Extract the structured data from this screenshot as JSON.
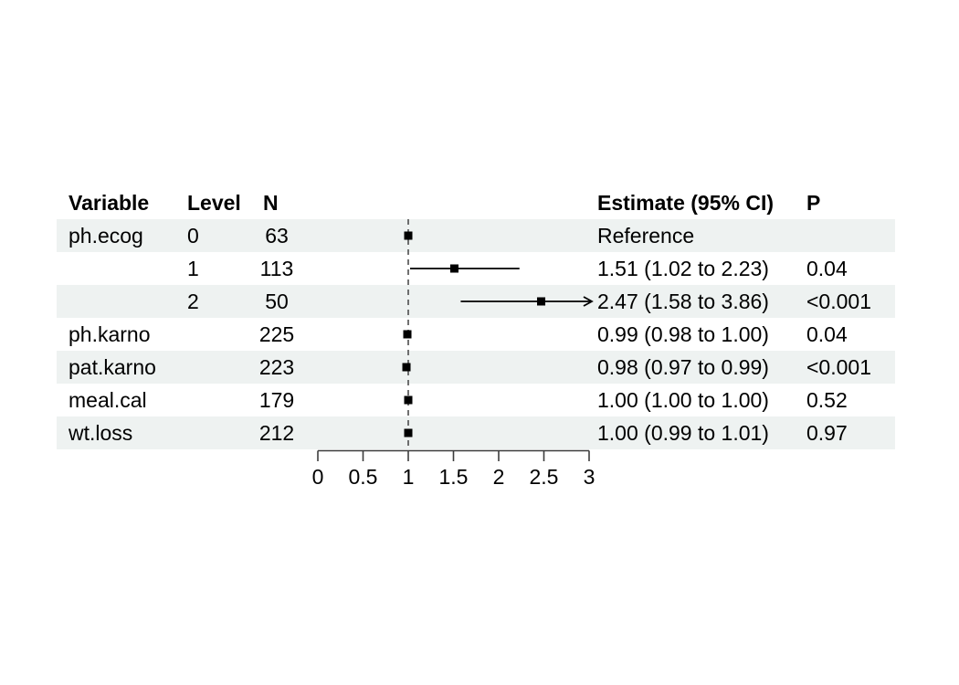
{
  "figure": {
    "background": "#ffffff",
    "row_shade_color": "#eef2f1",
    "text_color": "#000000",
    "data_color": "#000000",
    "axis_color": "#3d3d3d",
    "reference_line_color": "#4d4d4d"
  },
  "chart_data": {
    "type": "forest",
    "title": "",
    "xlabel": "",
    "ylabel": "",
    "legend": null,
    "grid": false,
    "xlim": [
      0,
      3
    ],
    "x_tick_values": [
      0,
      0.5,
      1,
      1.5,
      2,
      2.5,
      3
    ],
    "x_tick_labels": [
      "0",
      "0.5",
      "1",
      "1.5",
      "2",
      "2.5",
      "3"
    ],
    "reference_line": 1,
    "columns": {
      "variable": "Variable",
      "level": "Level",
      "n": "N",
      "estimate": "Estimate (95% CI)",
      "p": "P"
    },
    "rows": [
      {
        "variable": "ph.ecog",
        "level": "0",
        "n": "63",
        "estimate": 1.0,
        "ci_low": null,
        "ci_high": null,
        "estimate_label": "Reference",
        "p": "",
        "shaded": true,
        "clamped_high": false
      },
      {
        "variable": "",
        "level": "1",
        "n": "113",
        "estimate": 1.51,
        "ci_low": 1.02,
        "ci_high": 2.23,
        "estimate_label": "1.51 (1.02 to 2.23)",
        "p": "0.04",
        "shaded": false,
        "clamped_high": false
      },
      {
        "variable": "",
        "level": "2",
        "n": "50",
        "estimate": 2.47,
        "ci_low": 1.58,
        "ci_high": 3.86,
        "estimate_label": "2.47 (1.58 to 3.86)",
        "p": "<0.001",
        "shaded": true,
        "clamped_high": true
      },
      {
        "variable": "ph.karno",
        "level": "",
        "n": "225",
        "estimate": 0.99,
        "ci_low": 0.98,
        "ci_high": 1.0,
        "estimate_label": "0.99 (0.98 to 1.00)",
        "p": "0.04",
        "shaded": false,
        "clamped_high": false
      },
      {
        "variable": "pat.karno",
        "level": "",
        "n": "223",
        "estimate": 0.98,
        "ci_low": 0.97,
        "ci_high": 0.99,
        "estimate_label": "0.98 (0.97 to 0.99)",
        "p": "<0.001",
        "shaded": true,
        "clamped_high": false
      },
      {
        "variable": "meal.cal",
        "level": "",
        "n": "179",
        "estimate": 1.0,
        "ci_low": 1.0,
        "ci_high": 1.0,
        "estimate_label": "1.00 (1.00 to 1.00)",
        "p": "0.52",
        "shaded": false,
        "clamped_high": false
      },
      {
        "variable": "wt.loss",
        "level": "",
        "n": "212",
        "estimate": 1.0,
        "ci_low": 0.99,
        "ci_high": 1.01,
        "estimate_label": "1.00 (0.99 to 1.01)",
        "p": "0.97",
        "shaded": true,
        "clamped_high": false
      }
    ]
  }
}
